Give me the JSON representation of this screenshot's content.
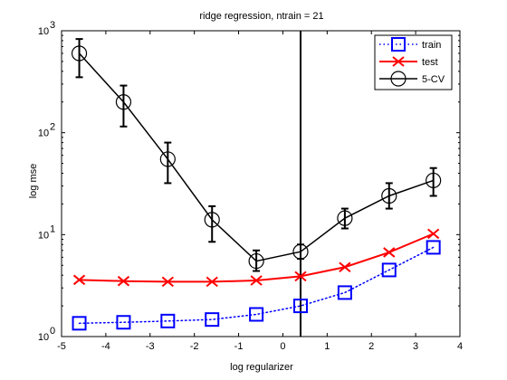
{
  "chart_data": {
    "type": "line",
    "title": "ridge regression, ntrain = 21",
    "xlabel": "log regularizer",
    "ylabel": "log mse",
    "xlim": [
      -5,
      4
    ],
    "ylim": [
      1,
      1000
    ],
    "yscale": "log",
    "x_ticks": [
      "-5",
      "-4",
      "-3",
      "-2",
      "-1",
      "0",
      "1",
      "2",
      "3",
      "4"
    ],
    "y_ticks": [
      {
        "value": 1,
        "base": "10",
        "exp": "0"
      },
      {
        "value": 10,
        "base": "10",
        "exp": "1"
      },
      {
        "value": 100,
        "base": "10",
        "exp": "2"
      },
      {
        "value": 1000,
        "base": "10",
        "exp": "3"
      }
    ],
    "grid": false,
    "legend_position": "top-right",
    "x": [
      -4.6,
      -3.6,
      -2.6,
      -1.6,
      -0.6,
      0.4,
      1.4,
      2.4,
      3.4
    ],
    "series": [
      {
        "name": "train",
        "color": "#0000ff",
        "line_style": "dotted",
        "marker": "square",
        "values": [
          1.35,
          1.38,
          1.42,
          1.47,
          1.65,
          2.0,
          2.7,
          4.5,
          7.5
        ]
      },
      {
        "name": "test",
        "color": "#ff0000",
        "line_style": "solid",
        "marker": "x",
        "values": [
          3.6,
          3.5,
          3.45,
          3.45,
          3.55,
          3.9,
          4.8,
          6.7,
          10.2
        ]
      },
      {
        "name": "5-CV",
        "color": "#000000",
        "line_style": "solid",
        "marker": "circle",
        "values": [
          600,
          200,
          55,
          14,
          5.5,
          6.8,
          14.5,
          24,
          34
        ],
        "error_low": [
          350,
          115,
          32,
          8.5,
          4.4,
          5.8,
          11.5,
          18,
          24
        ],
        "error_high": [
          830,
          290,
          80,
          19,
          7,
          8,
          18,
          32,
          45
        ]
      }
    ],
    "vertical_line_x": 0.4
  }
}
